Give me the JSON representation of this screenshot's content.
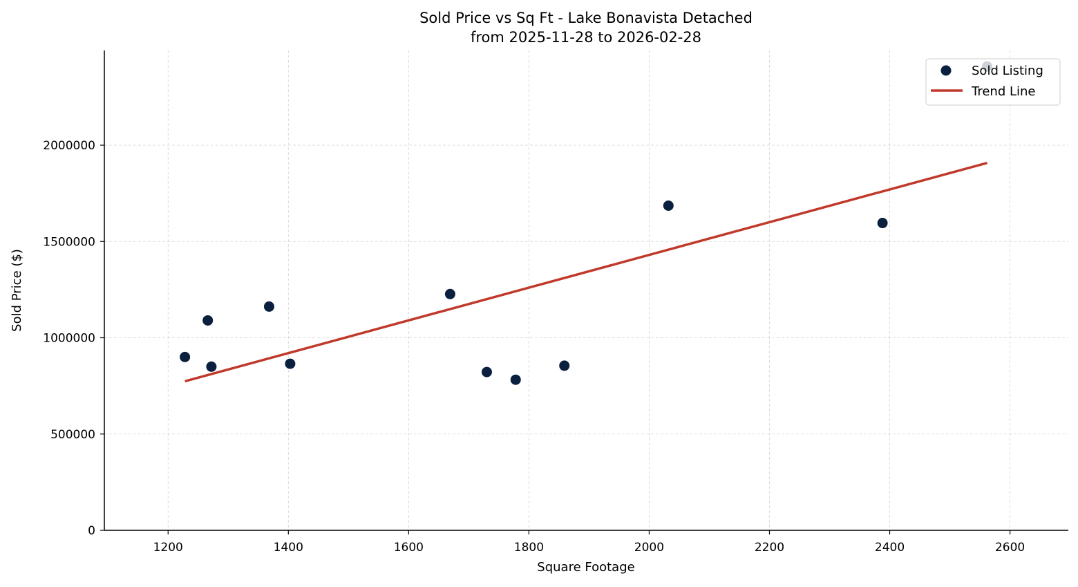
{
  "chart_data": {
    "type": "scatter",
    "title": "Sold Price vs Sq Ft - Lake Bonavista Detached",
    "subtitle": "from 2025-11-28 to 2026-02-28",
    "xlabel": "Square Footage",
    "ylabel": "Sold Price ($)",
    "xlim": [
      1094,
      2697
    ],
    "ylim": [
      0,
      2492000
    ],
    "xticks": [
      1200,
      1400,
      1600,
      1800,
      2000,
      2200,
      2400,
      2600
    ],
    "yticks": [
      0,
      500000,
      1000000,
      1500000,
      2000000
    ],
    "grid": true,
    "legend_position": "top-right",
    "series": [
      {
        "name": "Sold Listing",
        "kind": "scatter",
        "color": "#0b1f3f",
        "points": [
          {
            "x": 1228,
            "y": 900000
          },
          {
            "x": 1266,
            "y": 1090000
          },
          {
            "x": 1272,
            "y": 850000
          },
          {
            "x": 1368,
            "y": 1162000
          },
          {
            "x": 1403,
            "y": 865000
          },
          {
            "x": 1669,
            "y": 1227000
          },
          {
            "x": 1730,
            "y": 822000
          },
          {
            "x": 1778,
            "y": 782000
          },
          {
            "x": 1859,
            "y": 855000
          },
          {
            "x": 2032,
            "y": 1686000
          },
          {
            "x": 2388,
            "y": 1596000
          },
          {
            "x": 2562,
            "y": 2409000
          }
        ]
      },
      {
        "name": "Trend Line",
        "kind": "line",
        "color": "#c0392b",
        "points": [
          {
            "x": 1228,
            "y": 774000
          },
          {
            "x": 2562,
            "y": 1908000
          }
        ]
      }
    ]
  }
}
